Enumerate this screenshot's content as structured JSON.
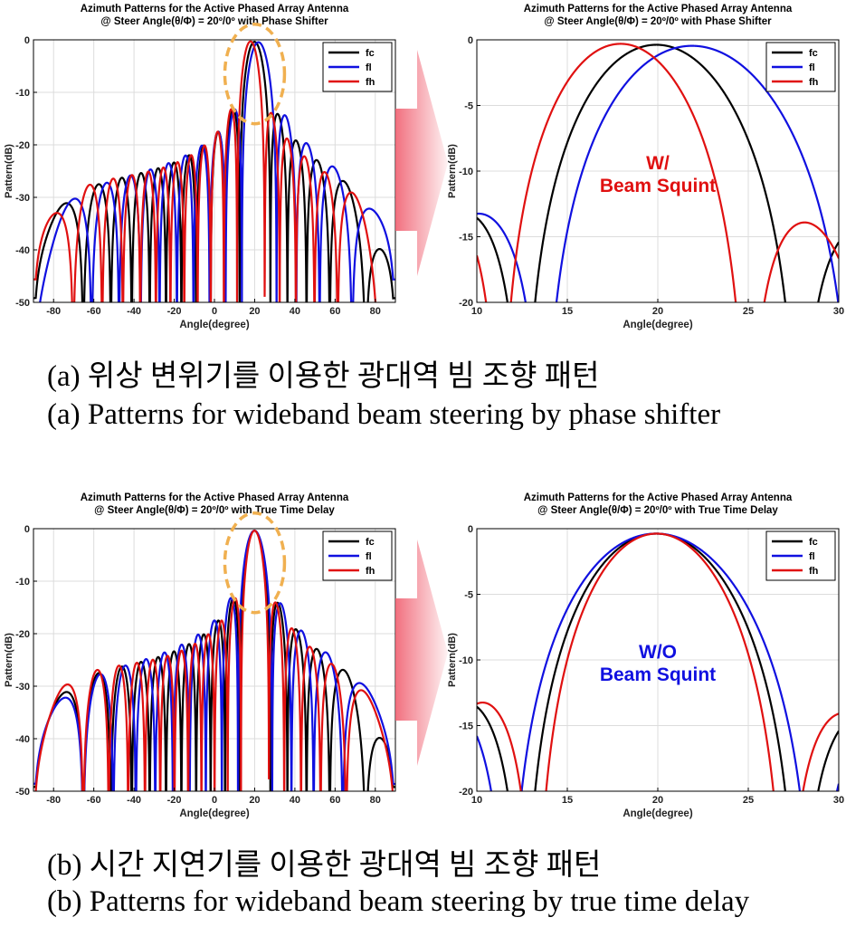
{
  "captions": {
    "a_kr": "(a) 위상 변위기를 이용한 광대역 빔 조향 패턴",
    "a_en": "(a) Patterns for wideband beam steering by phase shifter",
    "b_kr": "(b) 시간 지연기를 이용한 광대역 빔 조향 패턴",
    "b_en": "(b) Patterns for wideband beam steering by true time delay"
  },
  "colors": {
    "fc": "#000000",
    "fl": "#1010e0",
    "fh": "#e01010",
    "highlight": "#f0b050",
    "arrow": "#f06070"
  },
  "chart_data": [
    {
      "id": "a-full",
      "type": "line",
      "title": [
        "Azimuth Patterns for the Active Phased Array Antenna",
        "@ Steer Angle(θ/Φ) = 20º/0º with Phase Shifter"
      ],
      "xlabel": "Angle(degree)",
      "ylabel": "Pattern(dB)",
      "xlim": [
        -90,
        90
      ],
      "ylim": [
        -50,
        0
      ],
      "xticks": [
        -80,
        -60,
        -40,
        -20,
        0,
        20,
        40,
        60,
        80
      ],
      "yticks": [
        0,
        -10,
        -20,
        -30,
        -40,
        -50
      ],
      "grid": true,
      "legend": "top-right",
      "series": [
        {
          "name": "fc",
          "color": "#000000",
          "u": 1.0,
          "steer": 20
        },
        {
          "name": "fl",
          "color": "#1010e0",
          "u": 0.9,
          "steer": 22
        },
        {
          "name": "fh",
          "color": "#e01010",
          "u": 1.1,
          "steer": 18
        }
      ],
      "N": 16,
      "highlight": {
        "x": 20,
        "y": -6.5
      }
    },
    {
      "id": "a-zoom",
      "type": "line",
      "title": [
        "Azimuth Patterns for the Active Phased Array Antenna",
        "@ Steer Angle(θ/Φ) = 20º/0º with Phase Shifter"
      ],
      "xlabel": "Angle(degree)",
      "ylabel": "Pattern(dB)",
      "xlim": [
        10,
        30
      ],
      "ylim": [
        -20,
        0
      ],
      "xticks": [
        10,
        15,
        20,
        25,
        30
      ],
      "yticks": [
        0,
        -5,
        -10,
        -15,
        -20
      ],
      "grid": true,
      "legend": "top-right",
      "series": [
        {
          "name": "fc",
          "color": "#000000",
          "u": 1.0,
          "steer": 20
        },
        {
          "name": "fl",
          "color": "#1010e0",
          "u": 0.9,
          "steer": 22
        },
        {
          "name": "fh",
          "color": "#e01010",
          "u": 1.1,
          "steer": 18
        }
      ],
      "N": 16,
      "annotation": {
        "lines": [
          "W/",
          "Beam Squint"
        ],
        "color": "#e01010",
        "x": 20,
        "y": -10
      }
    },
    {
      "id": "b-full",
      "type": "line",
      "title": [
        "Azimuth Patterns for the Active Phased Array Antenna",
        "@ Steer Angle(θ/Φ) = 20º/0º with True Time Delay"
      ],
      "xlabel": "Angle(degree)",
      "ylabel": "Pattern(dB)",
      "xlim": [
        -90,
        90
      ],
      "ylim": [
        -50,
        0
      ],
      "xticks": [
        -80,
        -60,
        -40,
        -20,
        0,
        20,
        40,
        60,
        80
      ],
      "yticks": [
        0,
        -10,
        -20,
        -30,
        -40,
        -50
      ],
      "grid": true,
      "legend": "top-right",
      "series": [
        {
          "name": "fc",
          "color": "#000000",
          "u": 1.0,
          "steer": 20
        },
        {
          "name": "fl",
          "color": "#1010e0",
          "u": 0.9,
          "steer": 20
        },
        {
          "name": "fh",
          "color": "#e01010",
          "u": 1.1,
          "steer": 20
        }
      ],
      "N": 16,
      "highlight": {
        "x": 20,
        "y": -6.5
      }
    },
    {
      "id": "b-zoom",
      "type": "line",
      "title": [
        "Azimuth Patterns for the Active Phased Array Antenna",
        "@ Steer Angle(θ/Φ) = 20º/0º with True Time Delay"
      ],
      "xlabel": "Angle(degree)",
      "ylabel": "Pattern(dB)",
      "xlim": [
        10,
        30
      ],
      "ylim": [
        -20,
        0
      ],
      "xticks": [
        10,
        15,
        20,
        25,
        30
      ],
      "yticks": [
        0,
        -5,
        -10,
        -15,
        -20
      ],
      "grid": true,
      "legend": "top-right",
      "series": [
        {
          "name": "fc",
          "color": "#000000",
          "u": 1.0,
          "steer": 20
        },
        {
          "name": "fl",
          "color": "#1010e0",
          "u": 0.9,
          "steer": 20
        },
        {
          "name": "fh",
          "color": "#e01010",
          "u": 1.1,
          "steer": 20
        }
      ],
      "N": 16,
      "annotation": {
        "lines": [
          "W/O",
          "Beam Squint"
        ],
        "color": "#1010e0",
        "x": 20,
        "y": -10
      }
    }
  ]
}
